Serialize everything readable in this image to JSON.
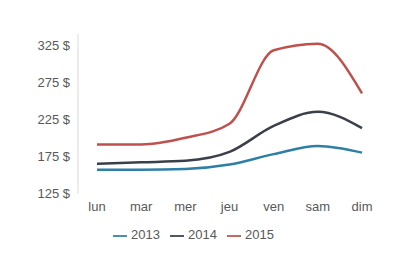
{
  "chart_data": {
    "type": "line",
    "categories": [
      "lun",
      "mar",
      "mer",
      "jeu",
      "ven",
      "sam",
      "dim"
    ],
    "series": [
      {
        "name": "2013",
        "color": "#2e7fa5",
        "values": [
          157,
          157,
          158,
          164,
          178,
          189,
          180
        ]
      },
      {
        "name": "2014",
        "color": "#3a3f4a",
        "values": [
          165,
          167,
          169,
          181,
          216,
          235,
          213
        ]
      },
      {
        "name": "2015",
        "color": "#c0504d",
        "values": [
          191,
          191,
          200,
          219,
          318,
          327,
          260
        ]
      }
    ],
    "ylim": [
      125,
      340
    ],
    "yticks": [
      {
        "value": 125,
        "label": "125 $"
      },
      {
        "value": 175,
        "label": "175 $"
      },
      {
        "value": 225,
        "label": "225 $"
      },
      {
        "value": 275,
        "label": "275 $"
      },
      {
        "value": 325,
        "label": "325 $"
      }
    ],
    "grid": false,
    "legend": "bottom"
  }
}
